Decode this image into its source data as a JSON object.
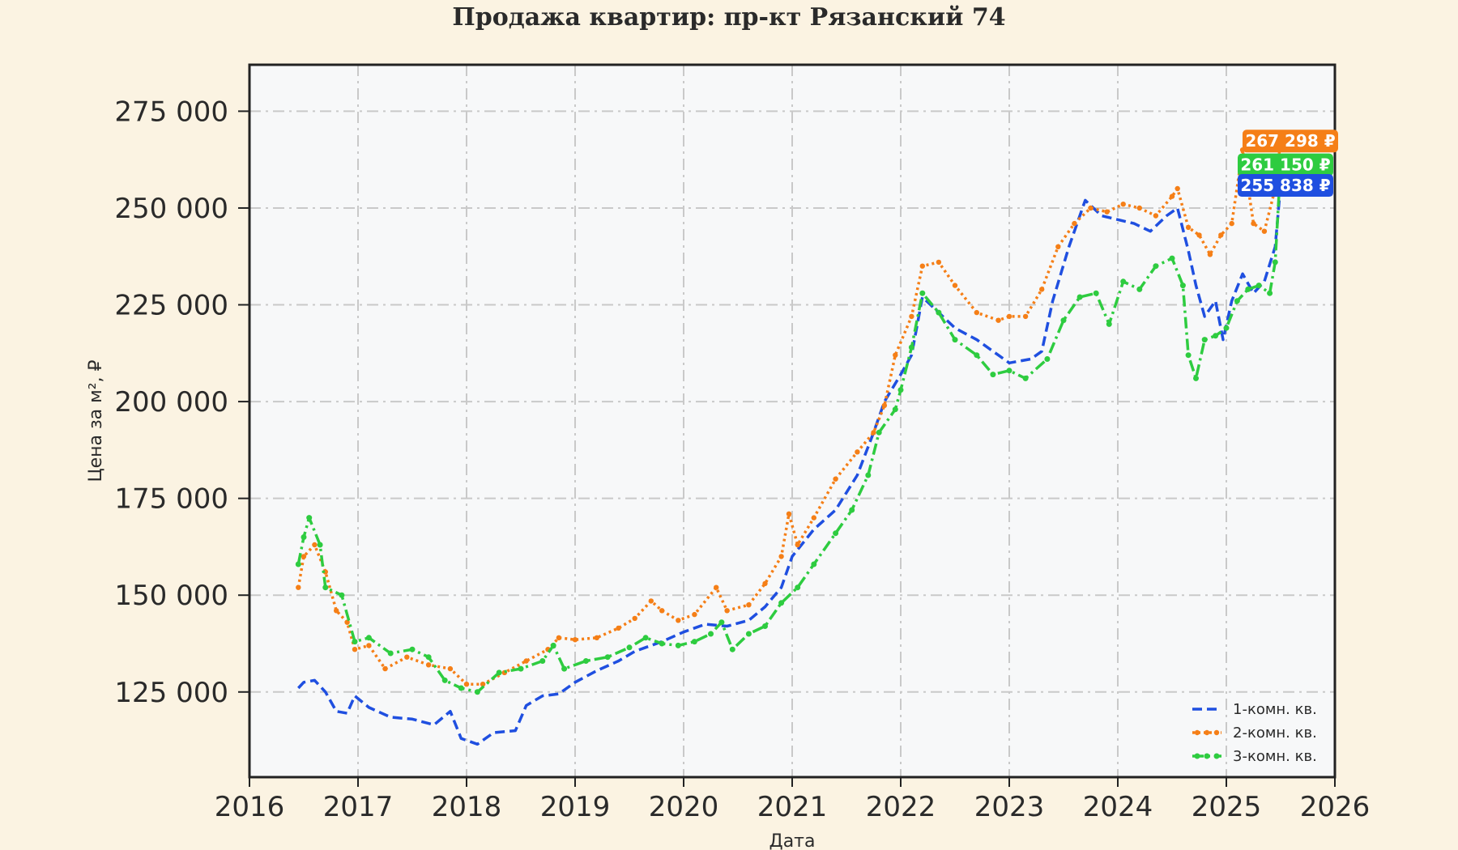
{
  "chart_data": {
    "type": "line",
    "title": "Продажа квартир: пр-кт Рязанский 74",
    "xlabel": "Дата",
    "ylabel": "Цена за м², ₽",
    "xlim": [
      2016,
      2026
    ],
    "ylim": [
      103000,
      287000
    ],
    "x_ticks": [
      2016,
      2017,
      2018,
      2019,
      2020,
      2021,
      2022,
      2023,
      2024,
      2025,
      2026
    ],
    "x_tick_labels": [
      "2016",
      "2017",
      "2018",
      "2019",
      "2020",
      "2021",
      "2022",
      "2023",
      "2024",
      "2025",
      "2026"
    ],
    "y_ticks": [
      125000,
      150000,
      175000,
      200000,
      225000,
      250000,
      275000
    ],
    "y_tick_labels": [
      "125 000",
      "150 000",
      "175 000",
      "200 000",
      "225 000",
      "250 000",
      "275 000"
    ],
    "grid": true,
    "legend_position": "bottom-right",
    "series": [
      {
        "name": "1-комн. кв.",
        "color": "#1f4fe0",
        "style": "dashed",
        "last_label": "255 838 ₽",
        "last_value": 255838,
        "points": [
          [
            2016.45,
            126000
          ],
          [
            2016.5,
            127500
          ],
          [
            2016.6,
            128000
          ],
          [
            2016.7,
            125000
          ],
          [
            2016.8,
            120000
          ],
          [
            2016.9,
            119500
          ],
          [
            2016.97,
            124000
          ],
          [
            2017.1,
            121000
          ],
          [
            2017.3,
            118500
          ],
          [
            2017.5,
            118000
          ],
          [
            2017.7,
            116500
          ],
          [
            2017.85,
            120000
          ],
          [
            2017.95,
            113000
          ],
          [
            2018.1,
            111500
          ],
          [
            2018.25,
            114500
          ],
          [
            2018.45,
            115000
          ],
          [
            2018.55,
            121500
          ],
          [
            2018.7,
            124000
          ],
          [
            2018.85,
            124500
          ],
          [
            2019.0,
            127500
          ],
          [
            2019.2,
            130500
          ],
          [
            2019.4,
            133000
          ],
          [
            2019.55,
            135500
          ],
          [
            2019.8,
            138000
          ],
          [
            2020.0,
            140500
          ],
          [
            2020.2,
            142500
          ],
          [
            2020.4,
            142000
          ],
          [
            2020.6,
            143500
          ],
          [
            2020.75,
            147000
          ],
          [
            2020.9,
            152000
          ],
          [
            2021.0,
            160000
          ],
          [
            2021.2,
            167000
          ],
          [
            2021.4,
            172000
          ],
          [
            2021.6,
            181000
          ],
          [
            2021.75,
            192000
          ],
          [
            2021.85,
            200000
          ],
          [
            2022.0,
            207000
          ],
          [
            2022.1,
            212000
          ],
          [
            2022.2,
            227000
          ],
          [
            2022.35,
            223000
          ],
          [
            2022.5,
            219000
          ],
          [
            2022.7,
            216000
          ],
          [
            2022.9,
            212000
          ],
          [
            2023.0,
            210000
          ],
          [
            2023.2,
            211000
          ],
          [
            2023.3,
            213000
          ],
          [
            2023.4,
            226000
          ],
          [
            2023.55,
            240000
          ],
          [
            2023.7,
            252000
          ],
          [
            2023.85,
            248000
          ],
          [
            2024.0,
            247000
          ],
          [
            2024.15,
            246000
          ],
          [
            2024.3,
            244000
          ],
          [
            2024.45,
            248000
          ],
          [
            2024.55,
            250000
          ],
          [
            2024.65,
            239000
          ],
          [
            2024.72,
            230000
          ],
          [
            2024.8,
            222000
          ],
          [
            2024.9,
            226000
          ],
          [
            2024.97,
            216000
          ],
          [
            2025.05,
            226000
          ],
          [
            2025.15,
            233000
          ],
          [
            2025.25,
            228000
          ],
          [
            2025.35,
            231000
          ],
          [
            2025.45,
            240000
          ],
          [
            2025.5,
            255838
          ]
        ]
      },
      {
        "name": "2-комн. кв.",
        "color": "#f57f17",
        "style": "dotted",
        "last_label": "267 298 ₽",
        "last_value": 267298,
        "points": [
          [
            2016.45,
            152000
          ],
          [
            2016.5,
            160000
          ],
          [
            2016.6,
            163000
          ],
          [
            2016.7,
            156000
          ],
          [
            2016.8,
            146000
          ],
          [
            2016.9,
            143000
          ],
          [
            2016.97,
            136000
          ],
          [
            2017.1,
            137000
          ],
          [
            2017.25,
            131000
          ],
          [
            2017.45,
            134000
          ],
          [
            2017.65,
            132000
          ],
          [
            2017.85,
            131000
          ],
          [
            2018.0,
            127000
          ],
          [
            2018.15,
            127000
          ],
          [
            2018.35,
            130000
          ],
          [
            2018.55,
            133000
          ],
          [
            2018.75,
            136000
          ],
          [
            2018.85,
            139000
          ],
          [
            2019.0,
            138500
          ],
          [
            2019.2,
            139000
          ],
          [
            2019.4,
            141500
          ],
          [
            2019.55,
            144000
          ],
          [
            2019.7,
            148500
          ],
          [
            2019.8,
            146000
          ],
          [
            2019.95,
            143500
          ],
          [
            2020.1,
            145000
          ],
          [
            2020.3,
            152000
          ],
          [
            2020.4,
            146000
          ],
          [
            2020.6,
            147500
          ],
          [
            2020.75,
            153000
          ],
          [
            2020.9,
            160000
          ],
          [
            2020.97,
            171000
          ],
          [
            2021.05,
            163000
          ],
          [
            2021.2,
            170000
          ],
          [
            2021.4,
            180000
          ],
          [
            2021.6,
            187000
          ],
          [
            2021.75,
            192000
          ],
          [
            2021.85,
            199000
          ],
          [
            2021.95,
            212000
          ],
          [
            2022.1,
            222000
          ],
          [
            2022.2,
            235000
          ],
          [
            2022.35,
            236000
          ],
          [
            2022.5,
            230000
          ],
          [
            2022.7,
            223000
          ],
          [
            2022.9,
            221000
          ],
          [
            2023.0,
            222000
          ],
          [
            2023.15,
            222000
          ],
          [
            2023.3,
            229000
          ],
          [
            2023.45,
            240000
          ],
          [
            2023.6,
            246000
          ],
          [
            2023.75,
            250000
          ],
          [
            2023.9,
            249000
          ],
          [
            2024.05,
            251000
          ],
          [
            2024.2,
            250000
          ],
          [
            2024.35,
            248000
          ],
          [
            2024.5,
            253000
          ],
          [
            2024.55,
            255000
          ],
          [
            2024.65,
            245000
          ],
          [
            2024.75,
            243000
          ],
          [
            2024.85,
            238000
          ],
          [
            2024.95,
            243000
          ],
          [
            2025.05,
            246000
          ],
          [
            2025.15,
            265000
          ],
          [
            2025.25,
            246000
          ],
          [
            2025.35,
            244000
          ],
          [
            2025.45,
            255000
          ],
          [
            2025.5,
            267298
          ]
        ]
      },
      {
        "name": "3-комн. кв.",
        "color": "#2ecc40",
        "style": "dash-dot",
        "last_label": "261 150 ₽",
        "last_value": 261150,
        "points": [
          [
            2016.45,
            158000
          ],
          [
            2016.5,
            165000
          ],
          [
            2016.55,
            170000
          ],
          [
            2016.65,
            163000
          ],
          [
            2016.7,
            152000
          ],
          [
            2016.85,
            150000
          ],
          [
            2016.97,
            138000
          ],
          [
            2017.1,
            139000
          ],
          [
            2017.3,
            135000
          ],
          [
            2017.5,
            136000
          ],
          [
            2017.65,
            134000
          ],
          [
            2017.8,
            128000
          ],
          [
            2017.95,
            126000
          ],
          [
            2018.1,
            125000
          ],
          [
            2018.3,
            130000
          ],
          [
            2018.5,
            131000
          ],
          [
            2018.7,
            133000
          ],
          [
            2018.8,
            137000
          ],
          [
            2018.9,
            131000
          ],
          [
            2019.1,
            133000
          ],
          [
            2019.3,
            134000
          ],
          [
            2019.5,
            136500
          ],
          [
            2019.65,
            139000
          ],
          [
            2019.8,
            137500
          ],
          [
            2019.95,
            137000
          ],
          [
            2020.1,
            138000
          ],
          [
            2020.25,
            140000
          ],
          [
            2020.35,
            143000
          ],
          [
            2020.45,
            136000
          ],
          [
            2020.6,
            140000
          ],
          [
            2020.75,
            142000
          ],
          [
            2020.9,
            148000
          ],
          [
            2021.05,
            152000
          ],
          [
            2021.2,
            158000
          ],
          [
            2021.4,
            166000
          ],
          [
            2021.55,
            172000
          ],
          [
            2021.7,
            181000
          ],
          [
            2021.8,
            192000
          ],
          [
            2021.95,
            198000
          ],
          [
            2022.0,
            203000
          ],
          [
            2022.1,
            214000
          ],
          [
            2022.2,
            228000
          ],
          [
            2022.35,
            223000
          ],
          [
            2022.5,
            216000
          ],
          [
            2022.7,
            212000
          ],
          [
            2022.85,
            207000
          ],
          [
            2023.0,
            208000
          ],
          [
            2023.15,
            206000
          ],
          [
            2023.35,
            211000
          ],
          [
            2023.5,
            221000
          ],
          [
            2023.65,
            227000
          ],
          [
            2023.8,
            228000
          ],
          [
            2023.92,
            220000
          ],
          [
            2024.05,
            231000
          ],
          [
            2024.2,
            229000
          ],
          [
            2024.35,
            235000
          ],
          [
            2024.5,
            237000
          ],
          [
            2024.6,
            230000
          ],
          [
            2024.65,
            212000
          ],
          [
            2024.72,
            206000
          ],
          [
            2024.8,
            216000
          ],
          [
            2024.9,
            217000
          ],
          [
            2025.0,
            219000
          ],
          [
            2025.1,
            226000
          ],
          [
            2025.2,
            229000
          ],
          [
            2025.3,
            230000
          ],
          [
            2025.4,
            228000
          ],
          [
            2025.45,
            236000
          ],
          [
            2025.5,
            261150
          ]
        ]
      }
    ]
  }
}
